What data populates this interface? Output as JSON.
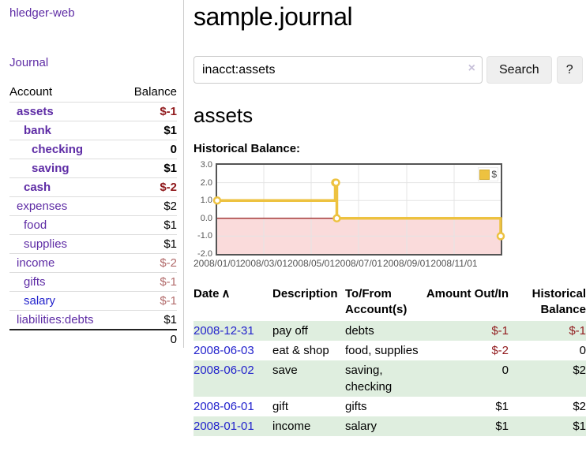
{
  "colors": {
    "link": "#2222cc",
    "link_visited": "#5e2ca5",
    "negative": "#90191c",
    "negative_muted": "#b26b6b",
    "row_green": "#dfeedf",
    "chart_gold": "#edc240"
  },
  "app": {
    "brand": "hledger-web",
    "nav_journal": "Journal"
  },
  "sidebar": {
    "header": {
      "account": "Account",
      "balance": "Balance"
    },
    "accounts": [
      {
        "name": "assets",
        "depth": 1,
        "bold": true,
        "balance": "$-1"
      },
      {
        "name": "bank",
        "depth": 2,
        "bold": true,
        "balance": "$1"
      },
      {
        "name": "checking",
        "depth": 3,
        "bold": true,
        "balance": "0"
      },
      {
        "name": "saving",
        "depth": 3,
        "bold": true,
        "balance": "$1"
      },
      {
        "name": "cash",
        "depth": 2,
        "bold": true,
        "balance": "$-2"
      },
      {
        "name": "expenses",
        "depth": 1,
        "bold": false,
        "balance": "$2"
      },
      {
        "name": "food",
        "depth": 2,
        "bold": false,
        "balance": "$1"
      },
      {
        "name": "supplies",
        "depth": 2,
        "bold": false,
        "balance": "$1"
      },
      {
        "name": "income",
        "depth": 1,
        "bold": false,
        "balance": "$-2"
      },
      {
        "name": "gifts",
        "depth": 2,
        "bold": false,
        "balance": "$-1"
      },
      {
        "name": "salary",
        "depth": 2,
        "bold": false,
        "balance": "$-1"
      },
      {
        "name": "liabilities:debts",
        "depth": 1,
        "bold": false,
        "balance": "$1"
      }
    ],
    "total": "0"
  },
  "header": {
    "title": "sample.journal"
  },
  "search": {
    "value": "inacct:assets",
    "clear_icon": "×",
    "button_label": "Search",
    "help_label": "?"
  },
  "account_page": {
    "title": "assets",
    "chart_label": "Historical Balance:"
  },
  "chart_data": {
    "type": "line",
    "step": true,
    "title": "Historical Balance",
    "series": [
      {
        "name": "$",
        "color": "#edc240",
        "points": [
          [
            "2008-01-01",
            1
          ],
          [
            "2008-06-01",
            2
          ],
          [
            "2008-06-02",
            2
          ],
          [
            "2008-06-03",
            0
          ],
          [
            "2008-12-31",
            -1
          ]
        ]
      }
    ],
    "x_range": [
      "2008-01-01",
      "2008-12-31"
    ],
    "x_ticks": [
      "2008/01/01",
      "2008/03/01",
      "2008/05/01",
      "2008/07/01",
      "2008/09/01",
      "2008/11/01"
    ],
    "y_ticks": [
      3.0,
      2.0,
      1.0,
      0.0,
      -1.0,
      -2.0
    ],
    "ylim": [
      -2,
      3
    ],
    "grid": true,
    "legend_position": "top-right",
    "negative_region_color": "#fadbdb",
    "zero_line_color": "#8b0000"
  },
  "register": {
    "sort_icon": "∧",
    "columns": {
      "date": "Date",
      "description": "Description",
      "accounts": "To/From Account(s)",
      "amount": "Amount Out/In",
      "balance": "Historical Balance"
    },
    "rows": [
      {
        "date": "2008-12-31",
        "description": "pay off",
        "accounts": "debts",
        "amount": "$-1",
        "balance": "$-1"
      },
      {
        "date": "2008-06-03",
        "description": "eat & shop",
        "accounts": "food, supplies",
        "amount": "$-2",
        "balance": "0"
      },
      {
        "date": "2008-06-02",
        "description": "save",
        "accounts": "saving, checking",
        "amount": "0",
        "balance": "$2"
      },
      {
        "date": "2008-06-01",
        "description": "gift",
        "accounts": "gifts",
        "amount": "$1",
        "balance": "$2"
      },
      {
        "date": "2008-01-01",
        "description": "income",
        "accounts": "salary",
        "amount": "$1",
        "balance": "$1"
      }
    ]
  }
}
